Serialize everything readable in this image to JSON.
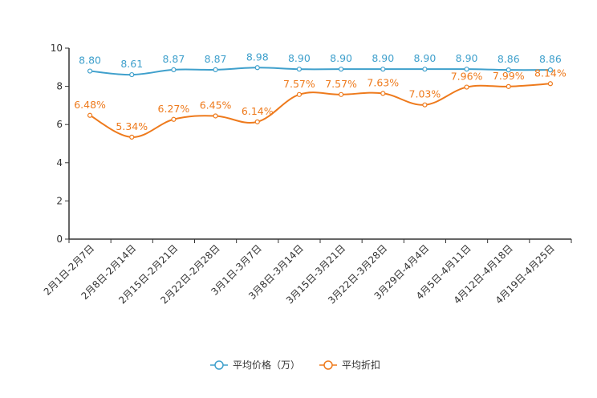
{
  "chart_data": {
    "type": "line",
    "title": "",
    "xlabel": "",
    "ylabel": "",
    "ylim": [
      0,
      10
    ],
    "yticks": [
      0,
      2,
      4,
      6,
      8,
      10
    ],
    "grid": false,
    "legend_position": "bottom-center",
    "categories": [
      "2月1日-2月7日",
      "2月8日-2月14日",
      "2月15日-2月21日",
      "2月22日-2月28日",
      "3月1日-3月7日",
      "3月8日-3月14日",
      "3月15日-3月21日",
      "3月22日-3月28日",
      "3月29日-4月4日",
      "4月5日-4月11日",
      "4月12日-4月18日",
      "4月19日-4月25日"
    ],
    "series": [
      {
        "name": "平均价格（万）",
        "color": "#3fa0cc",
        "values": [
          8.8,
          8.61,
          8.87,
          8.87,
          8.98,
          8.9,
          8.9,
          8.9,
          8.9,
          8.9,
          8.86,
          8.86
        ],
        "labels": [
          "8.80",
          "8.61",
          "8.87",
          "8.87",
          "8.98",
          "8.90",
          "8.90",
          "8.90",
          "8.90",
          "8.90",
          "8.86",
          "8.86"
        ]
      },
      {
        "name": "平均折扣",
        "color": "#ee7a1c",
        "values": [
          6.48,
          5.34,
          6.27,
          6.45,
          6.14,
          7.57,
          7.57,
          7.63,
          7.03,
          7.96,
          7.99,
          8.14
        ],
        "labels": [
          "6.48%",
          "5.34%",
          "6.27%",
          "6.45%",
          "6.14%",
          "7.57%",
          "7.57%",
          "7.63%",
          "7.03%",
          "7.96%",
          "7.99%",
          "8.14%"
        ]
      }
    ]
  }
}
